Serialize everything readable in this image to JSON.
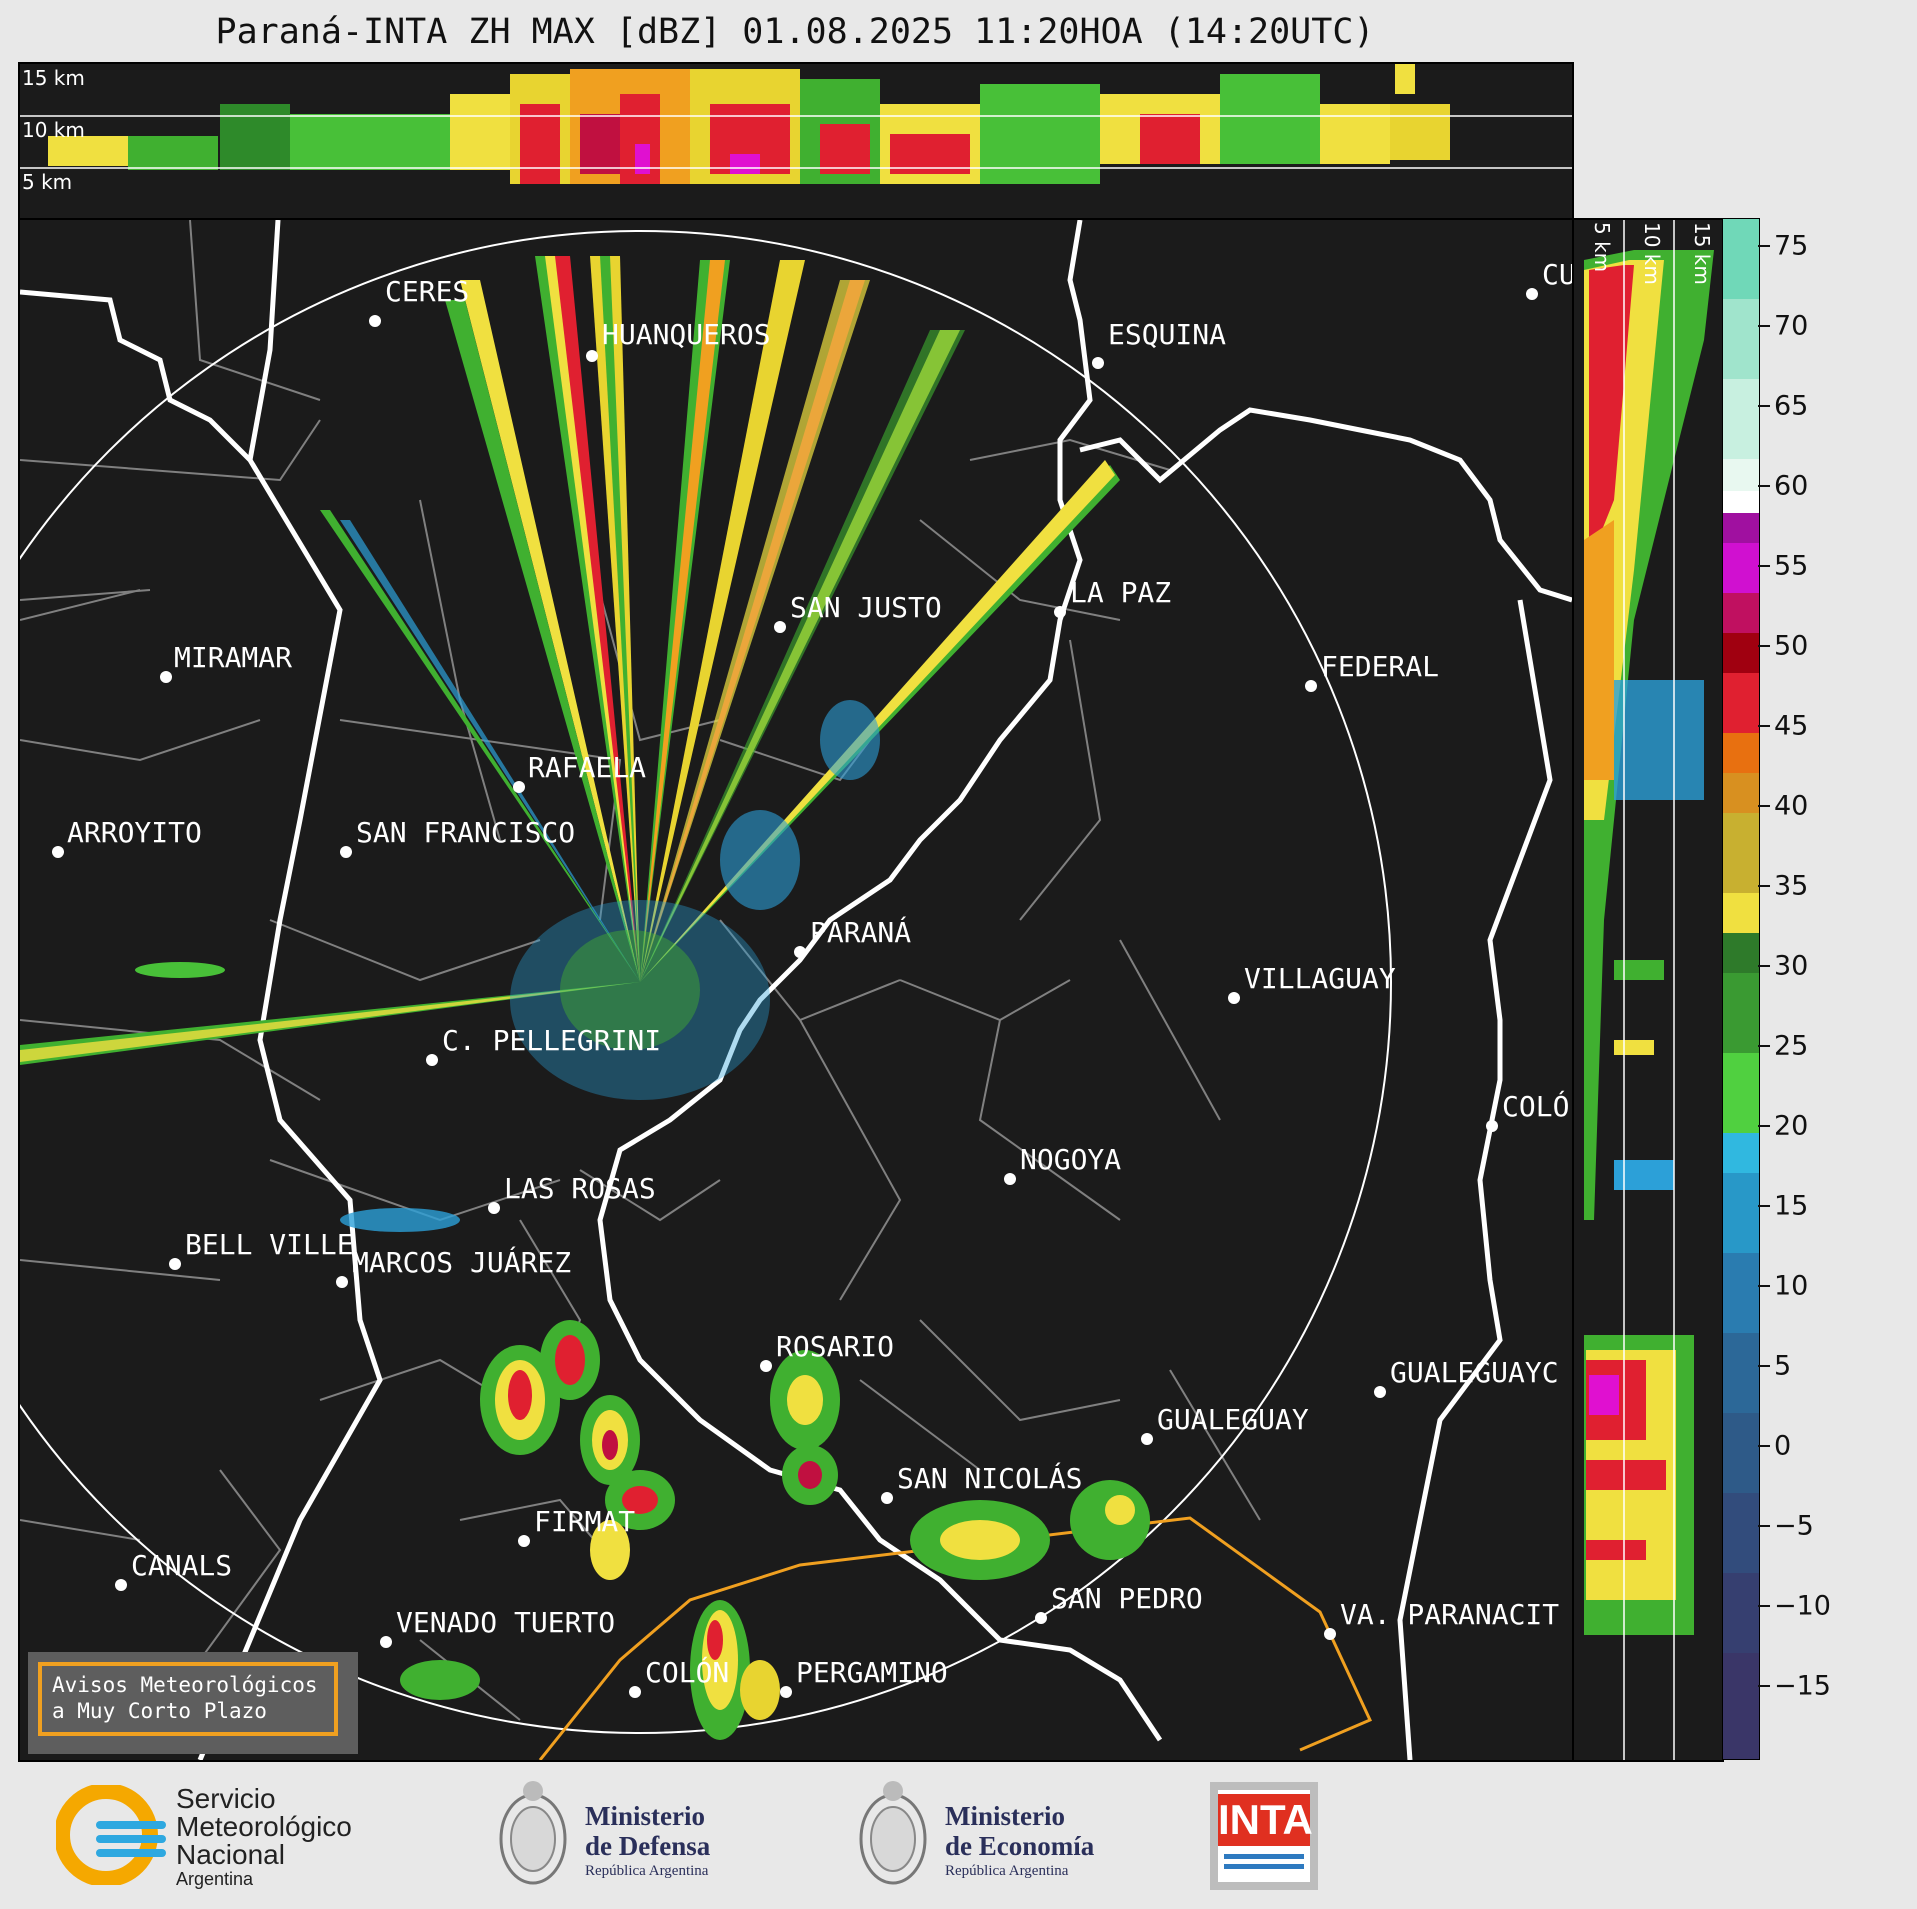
{
  "title": "Paraná-INTA ZH MAX [dBZ] 01.08.2025 11:20HOA (14:20UTC)",
  "top_strip": {
    "altitude_labels": [
      "15 km",
      "10 km",
      "5 km"
    ]
  },
  "right_strip": {
    "altitude_labels": [
      "5 km",
      "10 km",
      "15 km"
    ]
  },
  "colorbar": {
    "unit": "dBZ",
    "min": -20,
    "max": 77,
    "ticks": [
      "75",
      "70",
      "65",
      "60",
      "55",
      "50",
      "45",
      "40",
      "35",
      "30",
      "25",
      "20",
      "15",
      "10",
      "5",
      "0",
      "−5",
      "−10",
      "−15"
    ]
  },
  "cities": [
    {
      "name": "CERES"
    },
    {
      "name": "HUANQUEROS"
    },
    {
      "name": "ESQUINA"
    },
    {
      "name": "CU"
    },
    {
      "name": "SAN JUSTO"
    },
    {
      "name": "LA PAZ"
    },
    {
      "name": "MIRAMAR"
    },
    {
      "name": "FEDERAL"
    },
    {
      "name": "RAFAELA"
    },
    {
      "name": "ARROYITO"
    },
    {
      "name": "SAN FRANCISCO"
    },
    {
      "name": "PARANÁ"
    },
    {
      "name": "VILLAGUAY"
    },
    {
      "name": "C. PELLEGRINI"
    },
    {
      "name": "COLÓ"
    },
    {
      "name": "NOGOYA"
    },
    {
      "name": "LAS ROSAS"
    },
    {
      "name": "BELL VILLE"
    },
    {
      "name": "MARCOS JUÁREZ"
    },
    {
      "name": "ROSARIO"
    },
    {
      "name": "GUALEGUAYC"
    },
    {
      "name": "GUALEGUAY"
    },
    {
      "name": "SAN NICOLÁS"
    },
    {
      "name": "FIRMAT"
    },
    {
      "name": "CANALS"
    },
    {
      "name": "SAN PEDRO"
    },
    {
      "name": "VENADO TUERTO"
    },
    {
      "name": "VA. PARANACIT"
    },
    {
      "name": "COLÓN"
    },
    {
      "name": "PERGAMINO"
    }
  ],
  "notice": {
    "line1": "Avisos Meteorológicos",
    "line2": "a Muy Corto Plazo"
  },
  "logos": {
    "smn": {
      "line1": "Servicio",
      "line2": "Meteorológico",
      "line3": "Nacional",
      "line4": "Argentina"
    },
    "defensa": {
      "line1": "Ministerio",
      "line2": "de Defensa",
      "line3": "República Argentina"
    },
    "economia": {
      "line1": "Ministerio",
      "line2": "de Economía",
      "line3": "República Argentina"
    },
    "inta": {
      "text": "INTA"
    }
  },
  "colors": {
    "background": "#1b1b1b",
    "province_border": "#ffffff",
    "department_border": "#808080",
    "warning_area": "#f0a020"
  }
}
